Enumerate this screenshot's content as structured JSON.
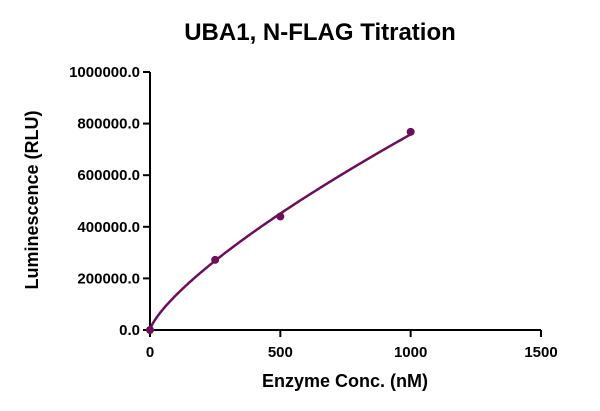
{
  "chart_data": {
    "type": "scatter",
    "title": "UBA1, N-FLAG Titration",
    "xlabel": "Enzyme Conc. (nM)",
    "ylabel": "Luminescence (RLU)",
    "xlim": [
      0,
      1500
    ],
    "ylim": [
      0,
      1000000
    ],
    "x_ticks": [
      0,
      500,
      1000,
      1500
    ],
    "x_tick_labels": [
      "0",
      "500",
      "1000",
      "1500"
    ],
    "y_ticks": [
      0,
      200000,
      400000,
      600000,
      800000,
      1000000
    ],
    "y_tick_labels": [
      "0.0",
      "200000.0",
      "400000.0",
      "600000.0",
      "800000.0",
      "1000000.0"
    ],
    "grid": false,
    "legend": "none",
    "fit_curve": true,
    "series": [
      {
        "x": [
          0,
          250,
          500,
          1000
        ],
        "y": [
          0,
          272000,
          440000,
          768000
        ],
        "color": "#6b0f57"
      }
    ]
  }
}
